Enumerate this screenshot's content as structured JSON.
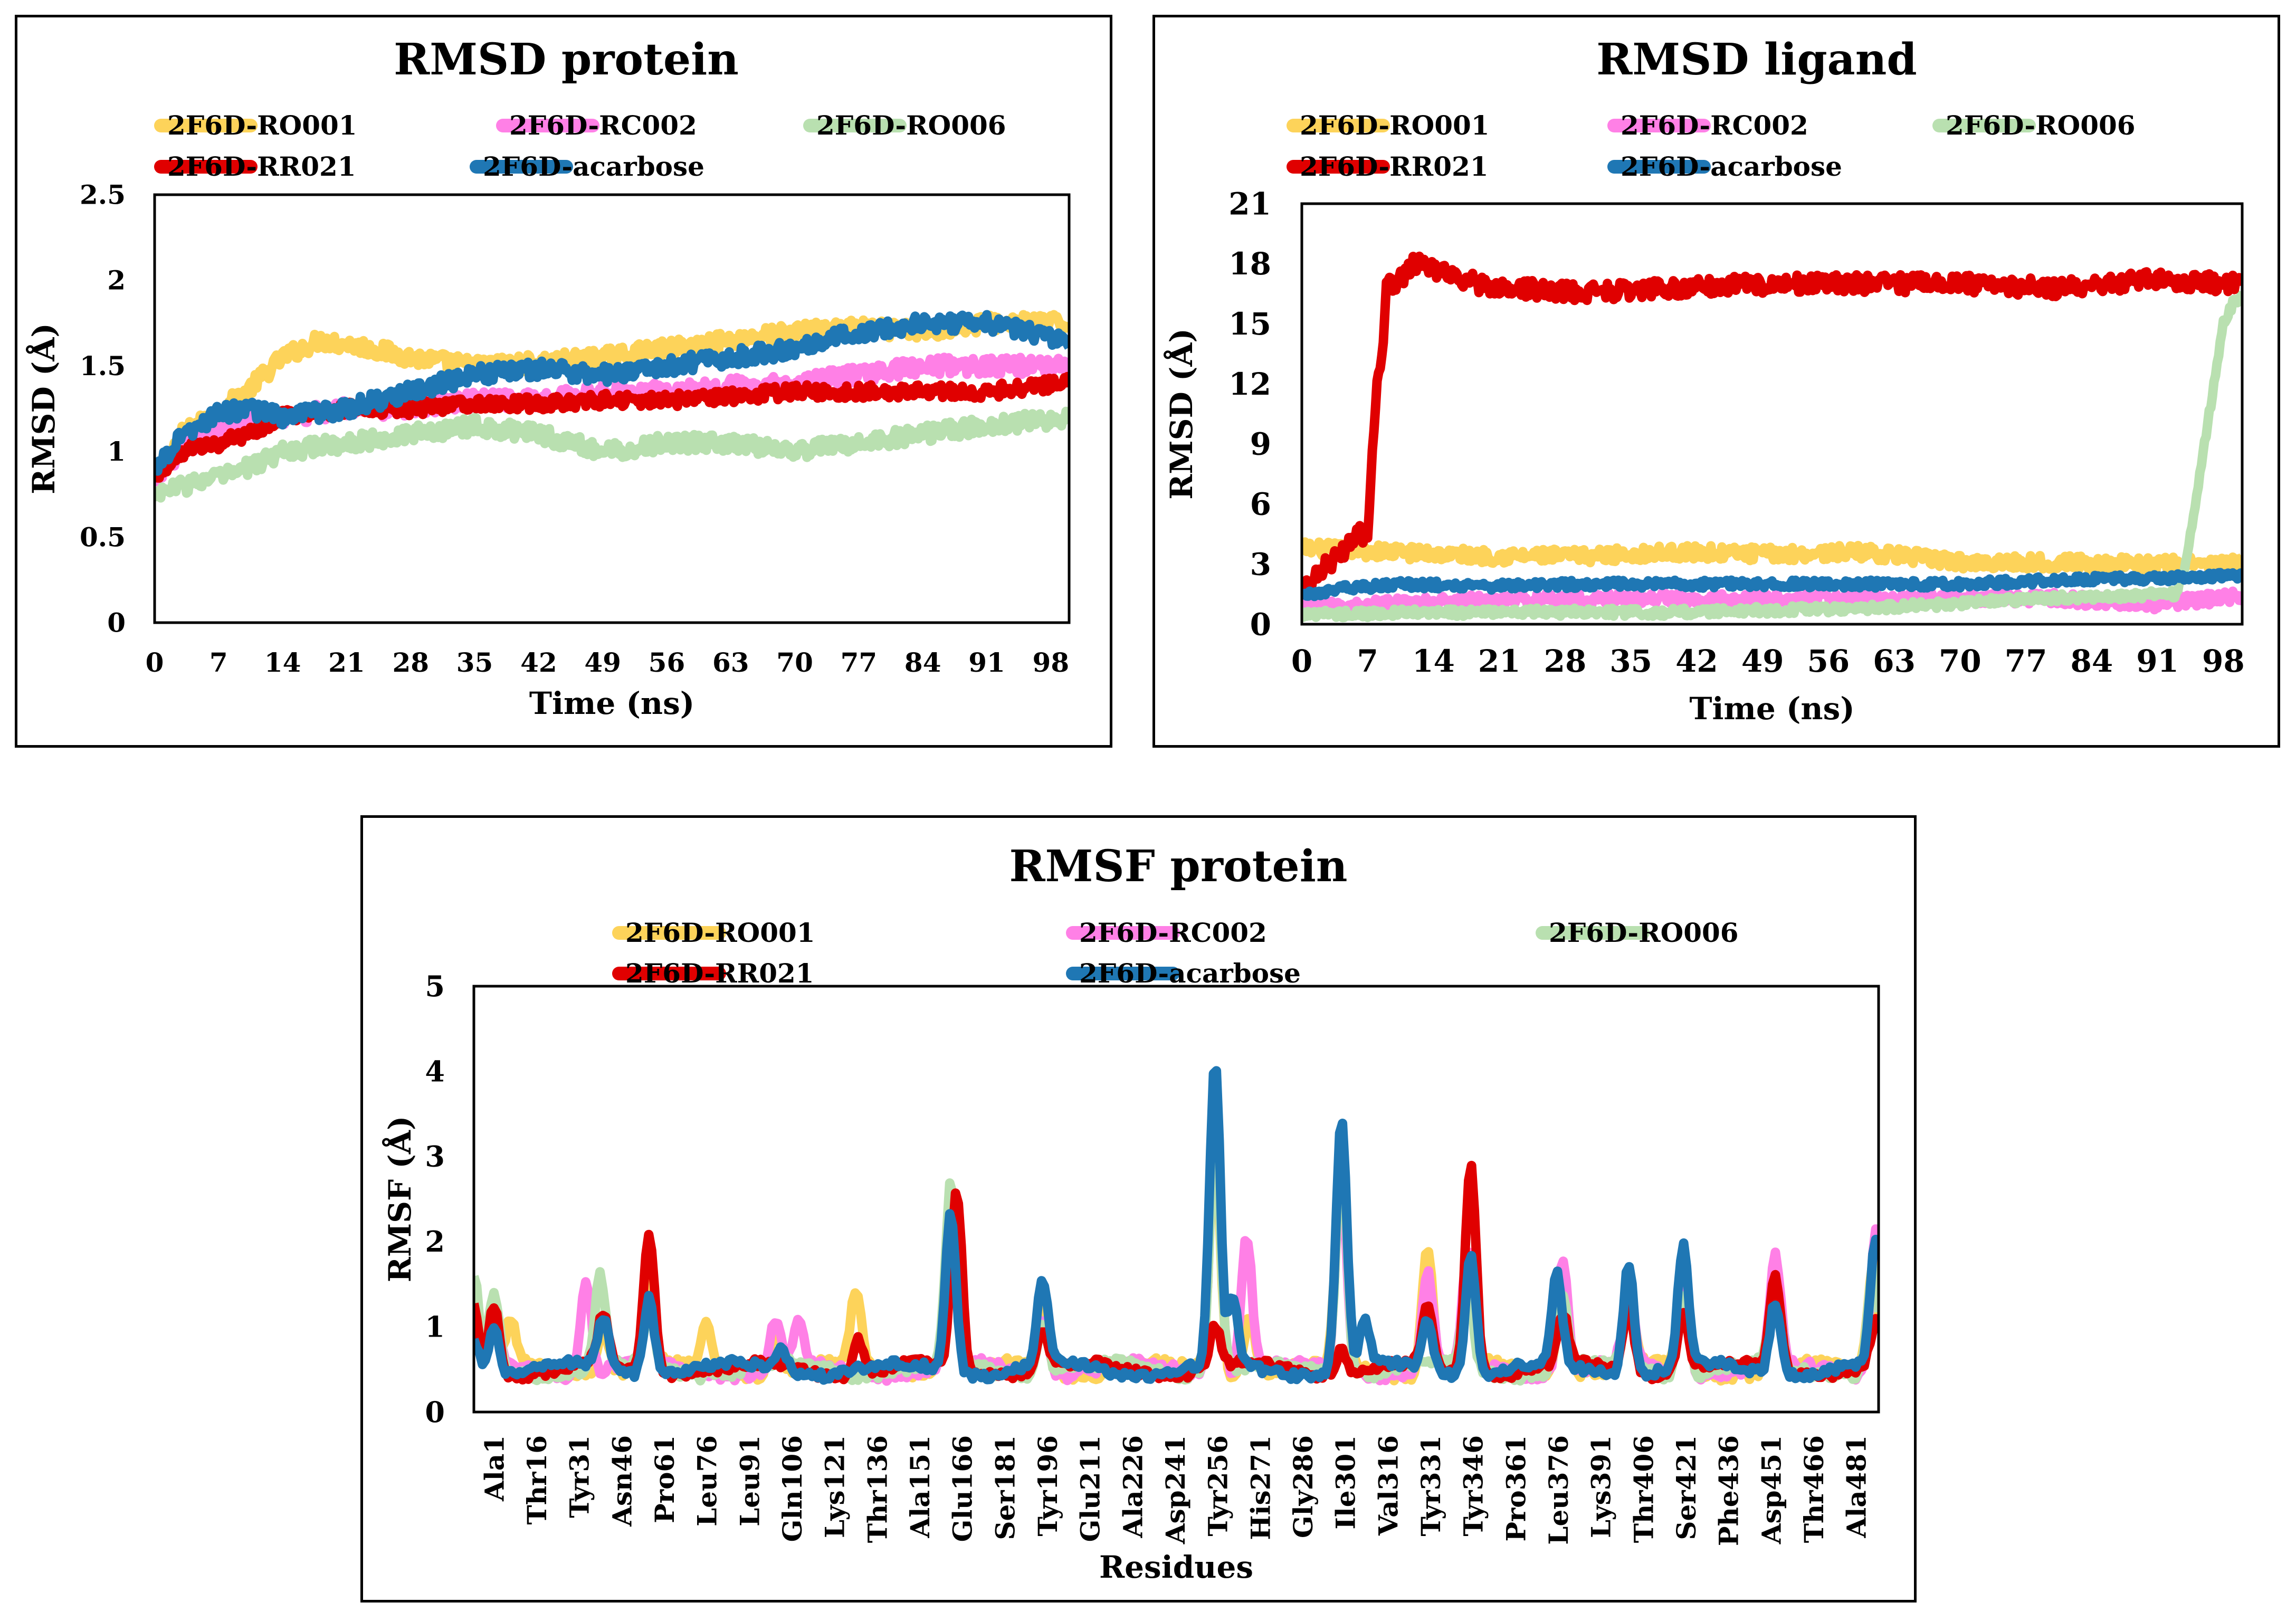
{
  "series_colors": {
    "2F6D-RO001": "#fdd35a",
    "2F6D-RC002": "#ff80e6",
    "2F6D-RO006": "#b9e0b0",
    "2F6D-RR021": "#e00000",
    "2F6D-acarbose": "#1f77b4"
  },
  "chart_data": [
    {
      "type": "line",
      "title": "RMSD protein",
      "xlabel": "Time (ns)",
      "ylabel": "RMSD (Å)",
      "xlim": [
        0,
        100
      ],
      "ylim": [
        0,
        2.5
      ],
      "x_ticks": [
        "0",
        "7",
        "14",
        "21",
        "28",
        "35",
        "42",
        "49",
        "56",
        "63",
        "70",
        "77",
        "84",
        "91",
        "98"
      ],
      "y_ticks": [
        "0",
        "0.5",
        "1",
        "1.5",
        "2",
        "2.5"
      ],
      "legend": [
        "2F6D-RO001",
        "2F6D-RC002",
        "2F6D-RO006",
        "2F6D-RR021",
        "2F6D-acarbose"
      ],
      "series": [
        {
          "name": "2F6D-RO001",
          "x": [
            0,
            3,
            6,
            10,
            14,
            18,
            22,
            28,
            35,
            42,
            49,
            56,
            63,
            70,
            77,
            84,
            91,
            100
          ],
          "values": [
            0.85,
            1.1,
            1.2,
            1.35,
            1.55,
            1.65,
            1.62,
            1.55,
            1.5,
            1.52,
            1.55,
            1.6,
            1.65,
            1.7,
            1.72,
            1.7,
            1.75,
            1.75
          ],
          "noise": 0.05
        },
        {
          "name": "2F6D-RC002",
          "x": [
            0,
            3,
            6,
            10,
            14,
            21,
            28,
            35,
            42,
            49,
            56,
            63,
            70,
            77,
            84,
            91,
            100
          ],
          "values": [
            0.85,
            1.0,
            1.1,
            1.2,
            1.2,
            1.25,
            1.25,
            1.3,
            1.3,
            1.35,
            1.35,
            1.38,
            1.4,
            1.45,
            1.5,
            1.5,
            1.5
          ],
          "noise": 0.05
        },
        {
          "name": "2F6D-RO006",
          "x": [
            0,
            3,
            7,
            10,
            14,
            21,
            28,
            35,
            42,
            49,
            56,
            63,
            70,
            77,
            84,
            91,
            100
          ],
          "values": [
            0.75,
            0.8,
            0.85,
            0.9,
            1.0,
            1.05,
            1.1,
            1.15,
            1.1,
            1.0,
            1.05,
            1.05,
            1.0,
            1.05,
            1.1,
            1.15,
            1.2
          ],
          "noise": 0.05
        },
        {
          "name": "2F6D-RR021",
          "x": [
            0,
            3,
            7,
            10,
            14,
            21,
            28,
            35,
            42,
            49,
            56,
            63,
            70,
            77,
            84,
            91,
            100
          ],
          "values": [
            0.85,
            1.0,
            1.05,
            1.1,
            1.2,
            1.25,
            1.25,
            1.28,
            1.28,
            1.3,
            1.3,
            1.32,
            1.35,
            1.35,
            1.35,
            1.35,
            1.4
          ],
          "noise": 0.04
        },
        {
          "name": "2F6D-acarbose",
          "x": [
            0,
            3,
            7,
            10,
            14,
            21,
            28,
            35,
            42,
            49,
            56,
            63,
            70,
            77,
            84,
            91,
            100
          ],
          "values": [
            0.9,
            1.1,
            1.22,
            1.25,
            1.2,
            1.25,
            1.35,
            1.45,
            1.48,
            1.45,
            1.5,
            1.55,
            1.6,
            1.7,
            1.75,
            1.75,
            1.65
          ],
          "noise": 0.05
        }
      ]
    },
    {
      "type": "line",
      "title": "RMSD ligand",
      "xlabel": "Time (ns)",
      "ylabel": "RMSD (Å)",
      "xlim": [
        0,
        100
      ],
      "ylim": [
        0,
        21
      ],
      "x_ticks": [
        "0",
        "7",
        "14",
        "21",
        "28",
        "35",
        "42",
        "49",
        "56",
        "63",
        "70",
        "77",
        "84",
        "91",
        "98"
      ],
      "y_ticks": [
        "0",
        "3",
        "6",
        "9",
        "12",
        "15",
        "18",
        "21"
      ],
      "legend": [
        "2F6D-RO001",
        "2F6D-RC002",
        "2F6D-RO006",
        "2F6D-RR021",
        "2F6D-acarbose"
      ],
      "series": [
        {
          "name": "2F6D-RO001",
          "x": [
            0,
            10,
            20,
            30,
            40,
            50,
            60,
            70,
            80,
            90,
            100
          ],
          "values": [
            3.8,
            3.6,
            3.4,
            3.4,
            3.6,
            3.5,
            3.6,
            3.1,
            3.1,
            3.0,
            3.0
          ],
          "noise": 0.35
        },
        {
          "name": "2F6D-RC002",
          "x": [
            0,
            5,
            20,
            40,
            60,
            80,
            90,
            100
          ],
          "values": [
            0.8,
            0.9,
            1.2,
            1.3,
            1.3,
            1.3,
            1.0,
            1.4
          ],
          "noise": 0.3
        },
        {
          "name": "2F6D-RO006",
          "x": [
            0,
            20,
            40,
            60,
            80,
            93,
            94,
            95,
            96,
            97,
            98,
            99,
            100
          ],
          "values": [
            0.5,
            0.6,
            0.6,
            0.8,
            1.3,
            1.5,
            3,
            6,
            9,
            12,
            15,
            16,
            16.5
          ],
          "noise": 0.2
        },
        {
          "name": "2F6D-RR021",
          "x": [
            0,
            4,
            5,
            6,
            7,
            7.5,
            8,
            8.5,
            9,
            10,
            12,
            20,
            30,
            40,
            50,
            60,
            70,
            80,
            90,
            100
          ],
          "values": [
            1.8,
            3.5,
            4.0,
            4.5,
            4.5,
            9,
            12,
            13,
            17,
            17,
            18,
            16.8,
            16.6,
            16.8,
            17,
            17,
            17,
            16.8,
            17.2,
            17
          ],
          "noise": 0.45
        },
        {
          "name": "2F6D-acarbose",
          "x": [
            0,
            5,
            10,
            20,
            30,
            40,
            50,
            60,
            70,
            80,
            90,
            100
          ],
          "values": [
            1.5,
            1.8,
            2.0,
            1.9,
            2.0,
            2.0,
            2.0,
            2.0,
            2.0,
            2.2,
            2.3,
            2.4
          ],
          "noise": 0.2
        }
      ]
    },
    {
      "type": "line",
      "title": "RMSF protein",
      "xlabel": "Residues",
      "ylabel": "RMSF (Å)",
      "xlim": [
        1,
        490
      ],
      "ylim": [
        0,
        5
      ],
      "x_ticks": [
        "Ala1",
        "Thr16",
        "Tyr31",
        "Asn46",
        "Pro61",
        "Leu76",
        "Leu91",
        "Gln106",
        "Lys121",
        "Thr136",
        "Ala151",
        "Glu166",
        "Ser181",
        "Tyr196",
        "Glu211",
        "Ala226",
        "Asp241",
        "Tyr256",
        "His271",
        "Gly286",
        "Ile301",
        "Val316",
        "Tyr331",
        "Tyr346",
        "Pro361",
        "Leu376",
        "Lys391",
        "Thr406",
        "Ser421",
        "Phe436",
        "Asp451",
        "Thr466",
        "Ala481"
      ],
      "y_ticks": [
        "0",
        "1",
        "2",
        "3",
        "4",
        "5"
      ],
      "legend": [
        "2F6D-RO001",
        "2F6D-RC002",
        "2F6D-RO006",
        "2F6D-RR021",
        "2F6D-acarbose"
      ],
      "series": [
        {
          "name": "2F6D-RO001",
          "peaks": [
            [
              1,
              1.4
            ],
            [
              8,
              1.2
            ],
            [
              14,
              1.0
            ],
            [
              46,
              1.1
            ],
            [
              62,
              1.5
            ],
            [
              82,
              1.0
            ],
            [
              106,
              1.0
            ],
            [
              134,
              1.4
            ],
            [
              167,
              2.3
            ],
            [
              199,
              1.2
            ],
            [
              259,
              3.2
            ],
            [
              271,
              1.2
            ],
            [
              303,
              3.0
            ],
            [
              333,
              2.0
            ],
            [
              347,
              1.6
            ],
            [
              380,
              1.5
            ],
            [
              403,
              1.4
            ],
            [
              422,
              1.6
            ],
            [
              454,
              1.6
            ],
            [
              488,
              1.8
            ]
          ],
          "noise": 0.06
        },
        {
          "name": "2F6D-RC002",
          "peaks": [
            [
              1,
              1.3
            ],
            [
              8,
              1.2
            ],
            [
              40,
              1.6
            ],
            [
              62,
              1.2
            ],
            [
              106,
              1.05
            ],
            [
              114,
              1.0
            ],
            [
              167,
              2.5
            ],
            [
              199,
              1.2
            ],
            [
              259,
              3.5
            ],
            [
              270,
              2.1
            ],
            [
              303,
              2.8
            ],
            [
              333,
              1.6
            ],
            [
              347,
              1.8
            ],
            [
              380,
              1.8
            ],
            [
              403,
              1.5
            ],
            [
              422,
              1.7
            ],
            [
              454,
              1.8
            ],
            [
              489,
              2.2
            ]
          ],
          "noise": 0.06
        },
        {
          "name": "2F6D-RO006",
          "peaks": [
            [
              1,
              1.5
            ],
            [
              8,
              1.4
            ],
            [
              45,
              1.55
            ],
            [
              62,
              1.1
            ],
            [
              167,
              2.6
            ],
            [
              199,
              1.1
            ],
            [
              259,
              3.3
            ],
            [
              303,
              3.2
            ],
            [
              347,
              1.5
            ],
            [
              380,
              1.3
            ],
            [
              403,
              1.3
            ],
            [
              422,
              1.5
            ],
            [
              454,
              1.5
            ],
            [
              488,
              1.7
            ]
          ],
          "noise": 0.06
        },
        {
          "name": "2F6D-RR021",
          "peaks": [
            [
              1,
              1.25
            ],
            [
              8,
              1.3
            ],
            [
              46,
              1.1
            ],
            [
              62,
              2.1
            ],
            [
              135,
              0.9
            ],
            [
              169,
              2.6
            ],
            [
              199,
              1.0
            ],
            [
              259,
              1.0
            ],
            [
              303,
              0.8
            ],
            [
              333,
              1.2
            ],
            [
              348,
              3.0
            ],
            [
              380,
              1.1
            ],
            [
              403,
              1.3
            ],
            [
              422,
              1.2
            ],
            [
              454,
              1.6
            ],
            [
              489,
              1.0
            ]
          ],
          "noise": 0.05
        },
        {
          "name": "2F6D-acarbose",
          "peaks": [
            [
              1,
              0.9
            ],
            [
              8,
              1.1
            ],
            [
              46,
              1.1
            ],
            [
              62,
              1.4
            ],
            [
              108,
              0.8
            ],
            [
              167,
              2.35
            ],
            [
              199,
              1.5
            ],
            [
              259,
              4.05
            ],
            [
              265,
              1.3
            ],
            [
              303,
              3.45
            ],
            [
              311,
              1.0
            ],
            [
              333,
              1.1
            ],
            [
              348,
              1.9
            ],
            [
              378,
              1.55
            ],
            [
              403,
              1.8
            ],
            [
              422,
              1.9
            ],
            [
              454,
              1.35
            ],
            [
              489,
              1.95
            ]
          ],
          "noise": 0.05
        }
      ]
    }
  ]
}
